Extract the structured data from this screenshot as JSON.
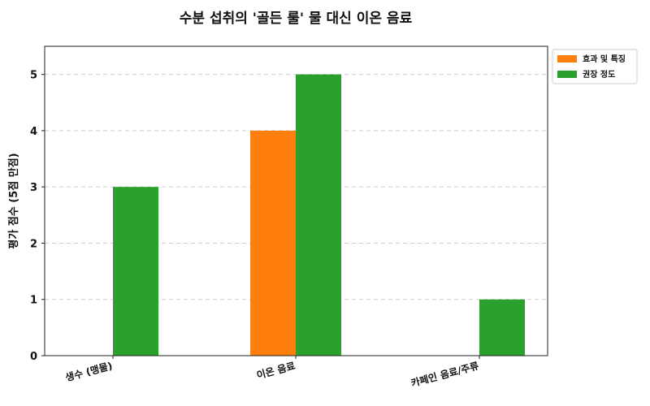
{
  "chart_data": {
    "type": "bar",
    "title": "수분 섭취의 '골든 룰' 물 대신 이온 음료",
    "xlabel": "",
    "ylabel": "평가 점수 (5점 만점)",
    "ylim": [
      0,
      5.5
    ],
    "yticks": [
      0,
      1,
      2,
      3,
      4,
      5
    ],
    "grid": true,
    "legend_position": "top-right",
    "categories": [
      "생수 (맹물)",
      "이온 음료",
      "카페인 음료/주류"
    ],
    "series": [
      {
        "name": "효과 및 특징",
        "color": "#ff7f0e",
        "values": [
          0,
          4,
          0
        ]
      },
      {
        "name": "권장 정도",
        "color": "#2ca02c",
        "values": [
          3,
          5,
          1
        ]
      }
    ]
  }
}
